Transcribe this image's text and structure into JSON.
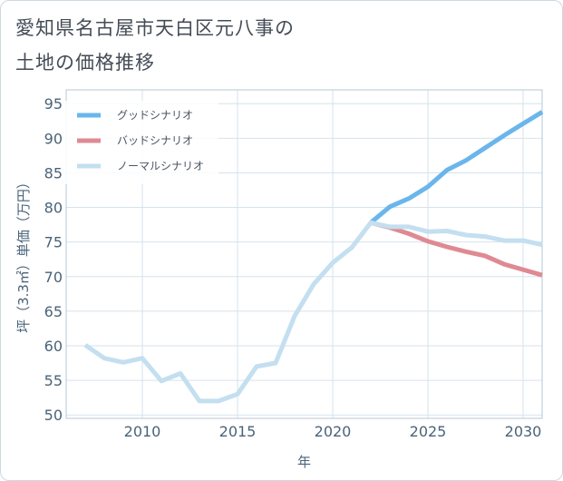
{
  "header": {
    "title_line1": "愛知県名古屋市天白区元八事の",
    "title_line2": "土地の価格推移"
  },
  "colors": {
    "good": "#6ab6ec",
    "bad": "#df8a93",
    "normal": "#c3dff0",
    "grid": "#d6e2ec",
    "axis_text": "#4a6378"
  },
  "chart_data": {
    "type": "line",
    "title": "愛知県名古屋市天白区元八事の土地の価格推移",
    "xlabel": "年",
    "ylabel": "坪（3.3㎡）単価（万円）",
    "xlim": [
      2006,
      2031
    ],
    "ylim": [
      49.5,
      97
    ],
    "x_ticks": [
      2010,
      2015,
      2020,
      2025,
      2030
    ],
    "y_ticks": [
      50,
      55,
      60,
      65,
      70,
      75,
      80,
      85,
      90,
      95
    ],
    "grid": true,
    "legend_position": "top-left",
    "series": [
      {
        "key": "good",
        "name": "グッドシナリオ",
        "x": [
          2022,
          2023,
          2024,
          2025,
          2026,
          2027,
          2028,
          2029,
          2030,
          2031
        ],
        "y": [
          77.8,
          80.1,
          81.3,
          83.0,
          85.4,
          86.8,
          88.6,
          90.4,
          92.1,
          93.8
        ]
      },
      {
        "key": "bad",
        "name": "バッドシナリオ",
        "x": [
          2022,
          2023,
          2024,
          2025,
          2026,
          2027,
          2028,
          2029,
          2030,
          2031
        ],
        "y": [
          77.8,
          77.1,
          76.2,
          75.1,
          74.3,
          73.6,
          73.0,
          71.8,
          71.0,
          70.2
        ]
      },
      {
        "key": "normal",
        "name": "ノーマルシナリオ",
        "x": [
          2007,
          2008,
          2009,
          2010,
          2011,
          2012,
          2013,
          2014,
          2015,
          2016,
          2017,
          2018,
          2019,
          2020,
          2021,
          2022,
          2023,
          2024,
          2025,
          2026,
          2027,
          2028,
          2029,
          2030,
          2031
        ],
        "y": [
          60.1,
          58.2,
          57.6,
          58.2,
          54.9,
          56.0,
          52.0,
          52.0,
          53.0,
          57.0,
          57.5,
          64.3,
          68.9,
          72.0,
          74.2,
          77.8,
          77.2,
          77.2,
          76.5,
          76.6,
          76.0,
          75.8,
          75.2,
          75.2,
          74.6
        ]
      }
    ]
  }
}
